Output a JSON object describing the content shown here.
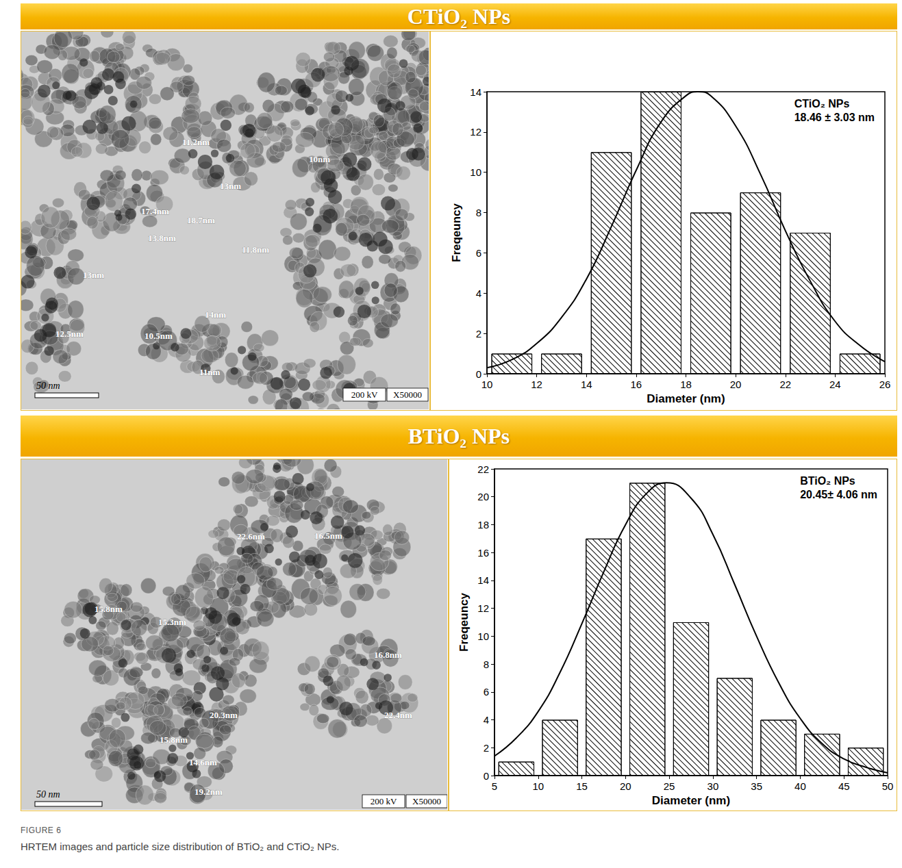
{
  "figure_label": "FIGURE 6",
  "caption": "HRTEM images and particle size distribution of BTiO₂ and CTiO₂ NPs.",
  "sections": [
    {
      "title": "CTiO₂ NPs",
      "image": {
        "scale_bar": "50 nm",
        "info": [
          "200 kV",
          "X50000"
        ],
        "annotations": [
          "11.2nm",
          "10nm",
          "13nm",
          "17.4nm",
          "18.7nm",
          "13.8nm",
          "13nm",
          "11.8nm",
          "14nm",
          "12.5nm",
          "10.5nm",
          "11nm"
        ]
      }
    },
    {
      "title": "BTiO₂ NPs",
      "image": {
        "scale_bar": "50 nm",
        "info": [
          "200 kV",
          "X50000"
        ],
        "annotations": [
          "22.6nm",
          "16.5nm",
          "15.8nm",
          "15.3nm",
          "16.8nm",
          "20.3nm",
          "22.4nm",
          "15.8nm",
          "14.6nm",
          "19.2nm"
        ]
      }
    }
  ],
  "chart_data": [
    {
      "type": "histogram",
      "annotations": [
        "CTiO₂ NPs",
        "18.46 ± 3.03 nm"
      ],
      "xlabel": "Diameter (nm)",
      "ylabel": "Freqeuncy",
      "bins": [
        10,
        12,
        14,
        16,
        18,
        20,
        22,
        24,
        26
      ],
      "values": [
        1,
        1,
        11,
        14,
        8,
        9,
        7,
        1
      ],
      "color": "#000000",
      "series": [
        {
          "type": "line",
          "line_style": "solid",
          "color": "#000000",
          "x": [
            10,
            11,
            12,
            13,
            14,
            15,
            16,
            17,
            18,
            18.5,
            19,
            20,
            21,
            22,
            23,
            24,
            25,
            26
          ],
          "values": [
            0.3,
            0.7,
            1.5,
            2.8,
            4.7,
            7.3,
            10.1,
            12.5,
            13.8,
            14,
            13.8,
            12.3,
            9.9,
            7.1,
            4.6,
            2.6,
            1.4,
            0.6
          ]
        }
      ],
      "xlim": [
        10,
        26
      ],
      "xticks": [
        10,
        12,
        14,
        16,
        18,
        20,
        22,
        24,
        26
      ],
      "ylim": [
        0,
        14
      ],
      "yticks": [
        0,
        2,
        4,
        6,
        8,
        10,
        12,
        14
      ],
      "grid": false
    },
    {
      "type": "histogram",
      "annotations": [
        "BTiO₂ NPs",
        "20.45± 4.06 nm"
      ],
      "xlabel": "Diameter (nm)",
      "ylabel": "Freqeuncy",
      "bins": [
        5,
        10,
        15,
        20,
        25,
        30,
        35,
        40,
        45,
        50
      ],
      "values": [
        1,
        4,
        17,
        21,
        11,
        7,
        4,
        3,
        2
      ],
      "color": "#000000",
      "series": [
        {
          "type": "line",
          "line_style": "solid",
          "color": "#000000",
          "x": [
            5,
            7.5,
            10,
            12.5,
            15,
            17.5,
            20,
            22.5,
            24.7,
            27.5,
            30,
            32.5,
            35,
            37.5,
            40,
            42.5,
            45,
            47.5,
            50
          ],
          "values": [
            1.4,
            2.7,
            4.6,
            7.4,
            10.9,
            14.6,
            18,
            20.3,
            21,
            19.9,
            17.3,
            13.7,
            10,
            6.7,
            4.1,
            2.3,
            1.2,
            0.6,
            0.2
          ]
        }
      ],
      "xlim": [
        5,
        50
      ],
      "xticks": [
        5,
        10,
        15,
        20,
        25,
        30,
        35,
        40,
        45,
        50
      ],
      "ylim": [
        0,
        22
      ],
      "yticks": [
        0,
        2,
        4,
        6,
        8,
        10,
        12,
        14,
        16,
        18,
        20,
        22
      ],
      "grid": false
    }
  ]
}
